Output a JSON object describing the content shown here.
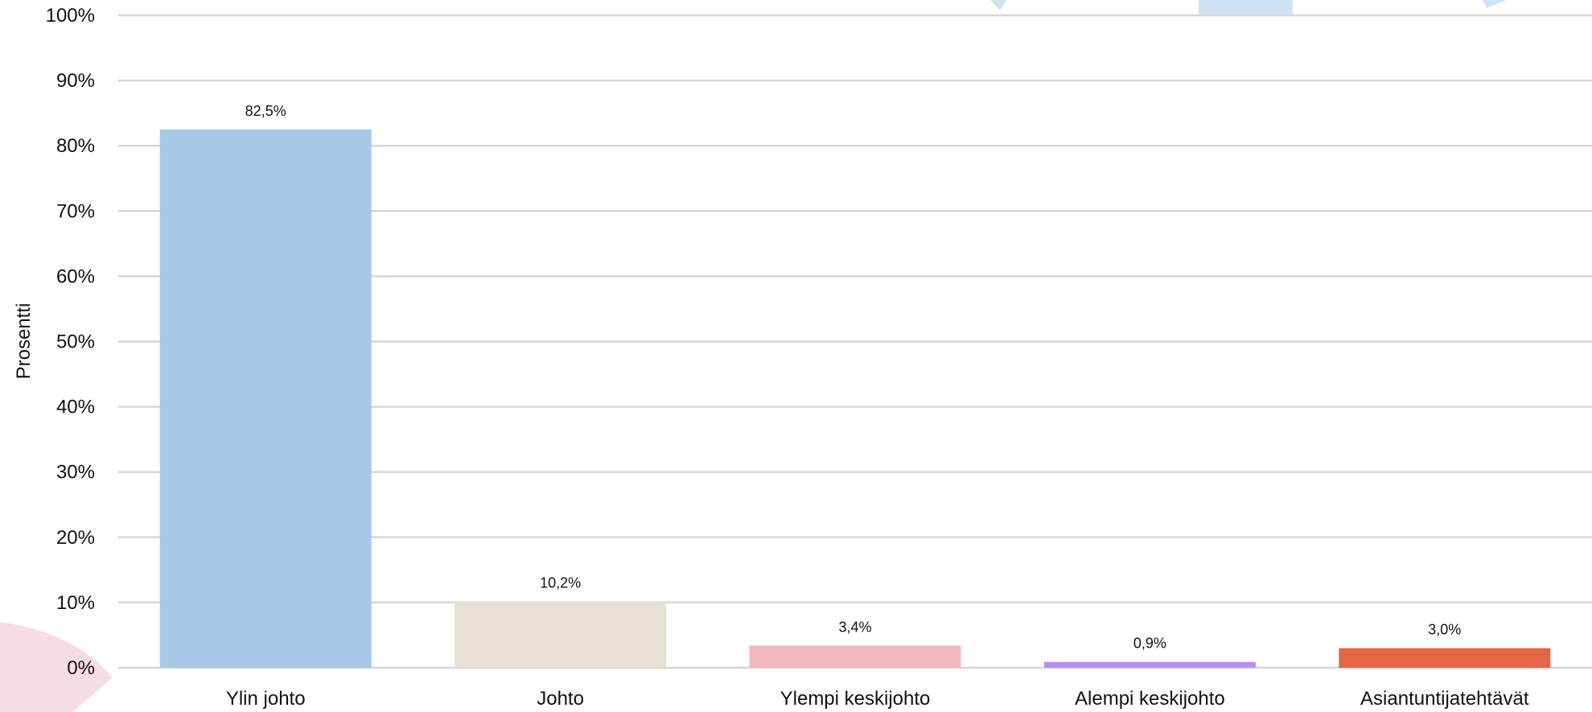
{
  "chart_data": {
    "type": "bar",
    "categories": [
      "Ylin johto",
      "Johto",
      "Ylempi keskijohto",
      "Alempi keskijohto",
      "Asiantuntijatehtävät"
    ],
    "values": [
      82.5,
      10.2,
      3.4,
      0.9,
      3.0
    ],
    "data_labels": [
      "82,5%",
      "10,2%",
      "3,4%",
      "0,9%",
      "3,0%"
    ],
    "colors": [
      "#a7c8e6",
      "#e8e0d4",
      "#f3b7be",
      "#b78ef0",
      "#e46644"
    ],
    "ylabel": "Prosentti",
    "xlabel": "",
    "ylim": [
      0,
      100
    ],
    "yticks": [
      "0%",
      "10%",
      "20%",
      "30%",
      "40%",
      "50%",
      "60%",
      "70%",
      "80%",
      "90%",
      "100%"
    ],
    "grid": true,
    "legend": "none"
  }
}
